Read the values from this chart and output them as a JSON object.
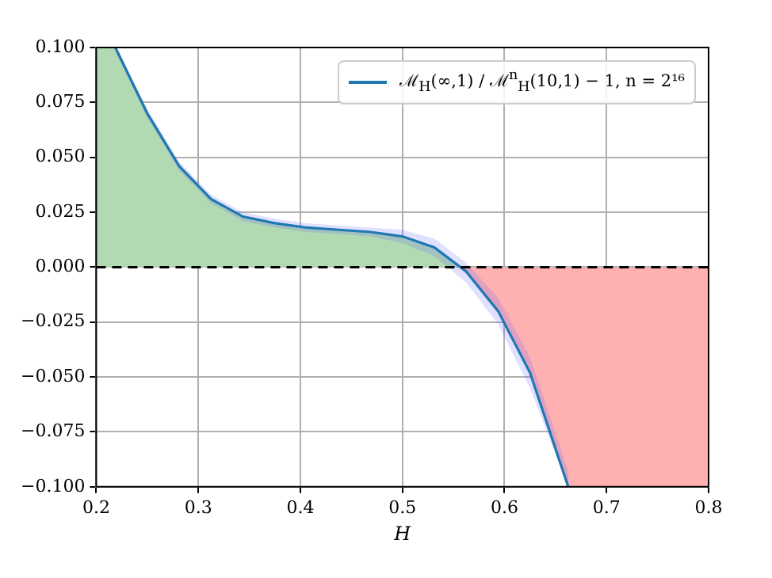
{
  "chart_data": {
    "type": "line",
    "xlabel": "H",
    "xlim": [
      0.2,
      0.8
    ],
    "ylim": [
      -0.1,
      0.1
    ],
    "xticks": [
      0.2,
      0.3,
      0.4,
      0.5,
      0.6,
      0.7,
      0.8
    ],
    "yticks": [
      {
        "value": -0.1,
        "label": "−0.100"
      },
      {
        "value": -0.075,
        "label": "−0.075"
      },
      {
        "value": -0.05,
        "label": "−0.050"
      },
      {
        "value": -0.025,
        "label": "−0.025"
      },
      {
        "value": 0,
        "label": "0.000"
      },
      {
        "value": 0.025,
        "label": "0.025"
      },
      {
        "value": 0.05,
        "label": "0.050"
      },
      {
        "value": 0.075,
        "label": "0.075"
      },
      {
        "value": 0.1,
        "label": "0.100"
      }
    ],
    "grid": true,
    "legend": "top right",
    "ref_lines": [
      {
        "axis": "y",
        "value": 0,
        "color": "#000000",
        "line_style": "dashed"
      }
    ],
    "series": [
      {
        "type": "area",
        "color": "#b2dab2",
        "x": [
          0.2,
          0.21875,
          0.25,
          0.28125,
          0.3125,
          0.34375,
          0.375,
          0.40625,
          0.4375,
          0.46875,
          0.5,
          0.53125,
          0.558
        ],
        "values": [
          0.1,
          0.1,
          0.07,
          0.046,
          0.031,
          0.023,
          0.02,
          0.018,
          0.017,
          0.016,
          0.014,
          0.009,
          0
        ]
      },
      {
        "type": "area",
        "color": "#ffb0b0",
        "x": [
          0.558,
          0.59375,
          0.625,
          0.6625,
          0.8
        ],
        "values": [
          0,
          -0.02,
          -0.048,
          -0.1,
          -0.1
        ]
      },
      {
        "type": "line",
        "name": "ℳ$_{H}$(∞,1) / ℳ$^{n}$$_{H}$(10,1) − 1,  n = 2¹⁶",
        "color": "#1f77b4",
        "x": [
          0.21875,
          0.25,
          0.28125,
          0.3125,
          0.34375,
          0.375,
          0.40625,
          0.4375,
          0.46875,
          0.5,
          0.53125,
          0.5625,
          0.59375,
          0.625,
          0.6625
        ],
        "values": [
          0.1,
          0.07,
          0.046,
          0.031,
          0.023,
          0.02,
          0.018,
          0.017,
          0.016,
          0.014,
          0.009,
          -0.002,
          -0.02,
          -0.048,
          -0.1
        ],
        "lower": [
          0.098,
          0.068,
          0.044,
          0.029,
          0.021,
          0.018,
          0.016,
          0.015,
          0.014,
          0.011,
          0.005,
          -0.007,
          -0.026,
          -0.055,
          -0.1
        ],
        "upper": [
          0.1,
          0.072,
          0.048,
          0.033,
          0.025,
          0.022,
          0.02,
          0.019,
          0.018,
          0.017,
          0.013,
          0.002,
          -0.014,
          -0.041,
          -0.093
        ]
      }
    ]
  }
}
